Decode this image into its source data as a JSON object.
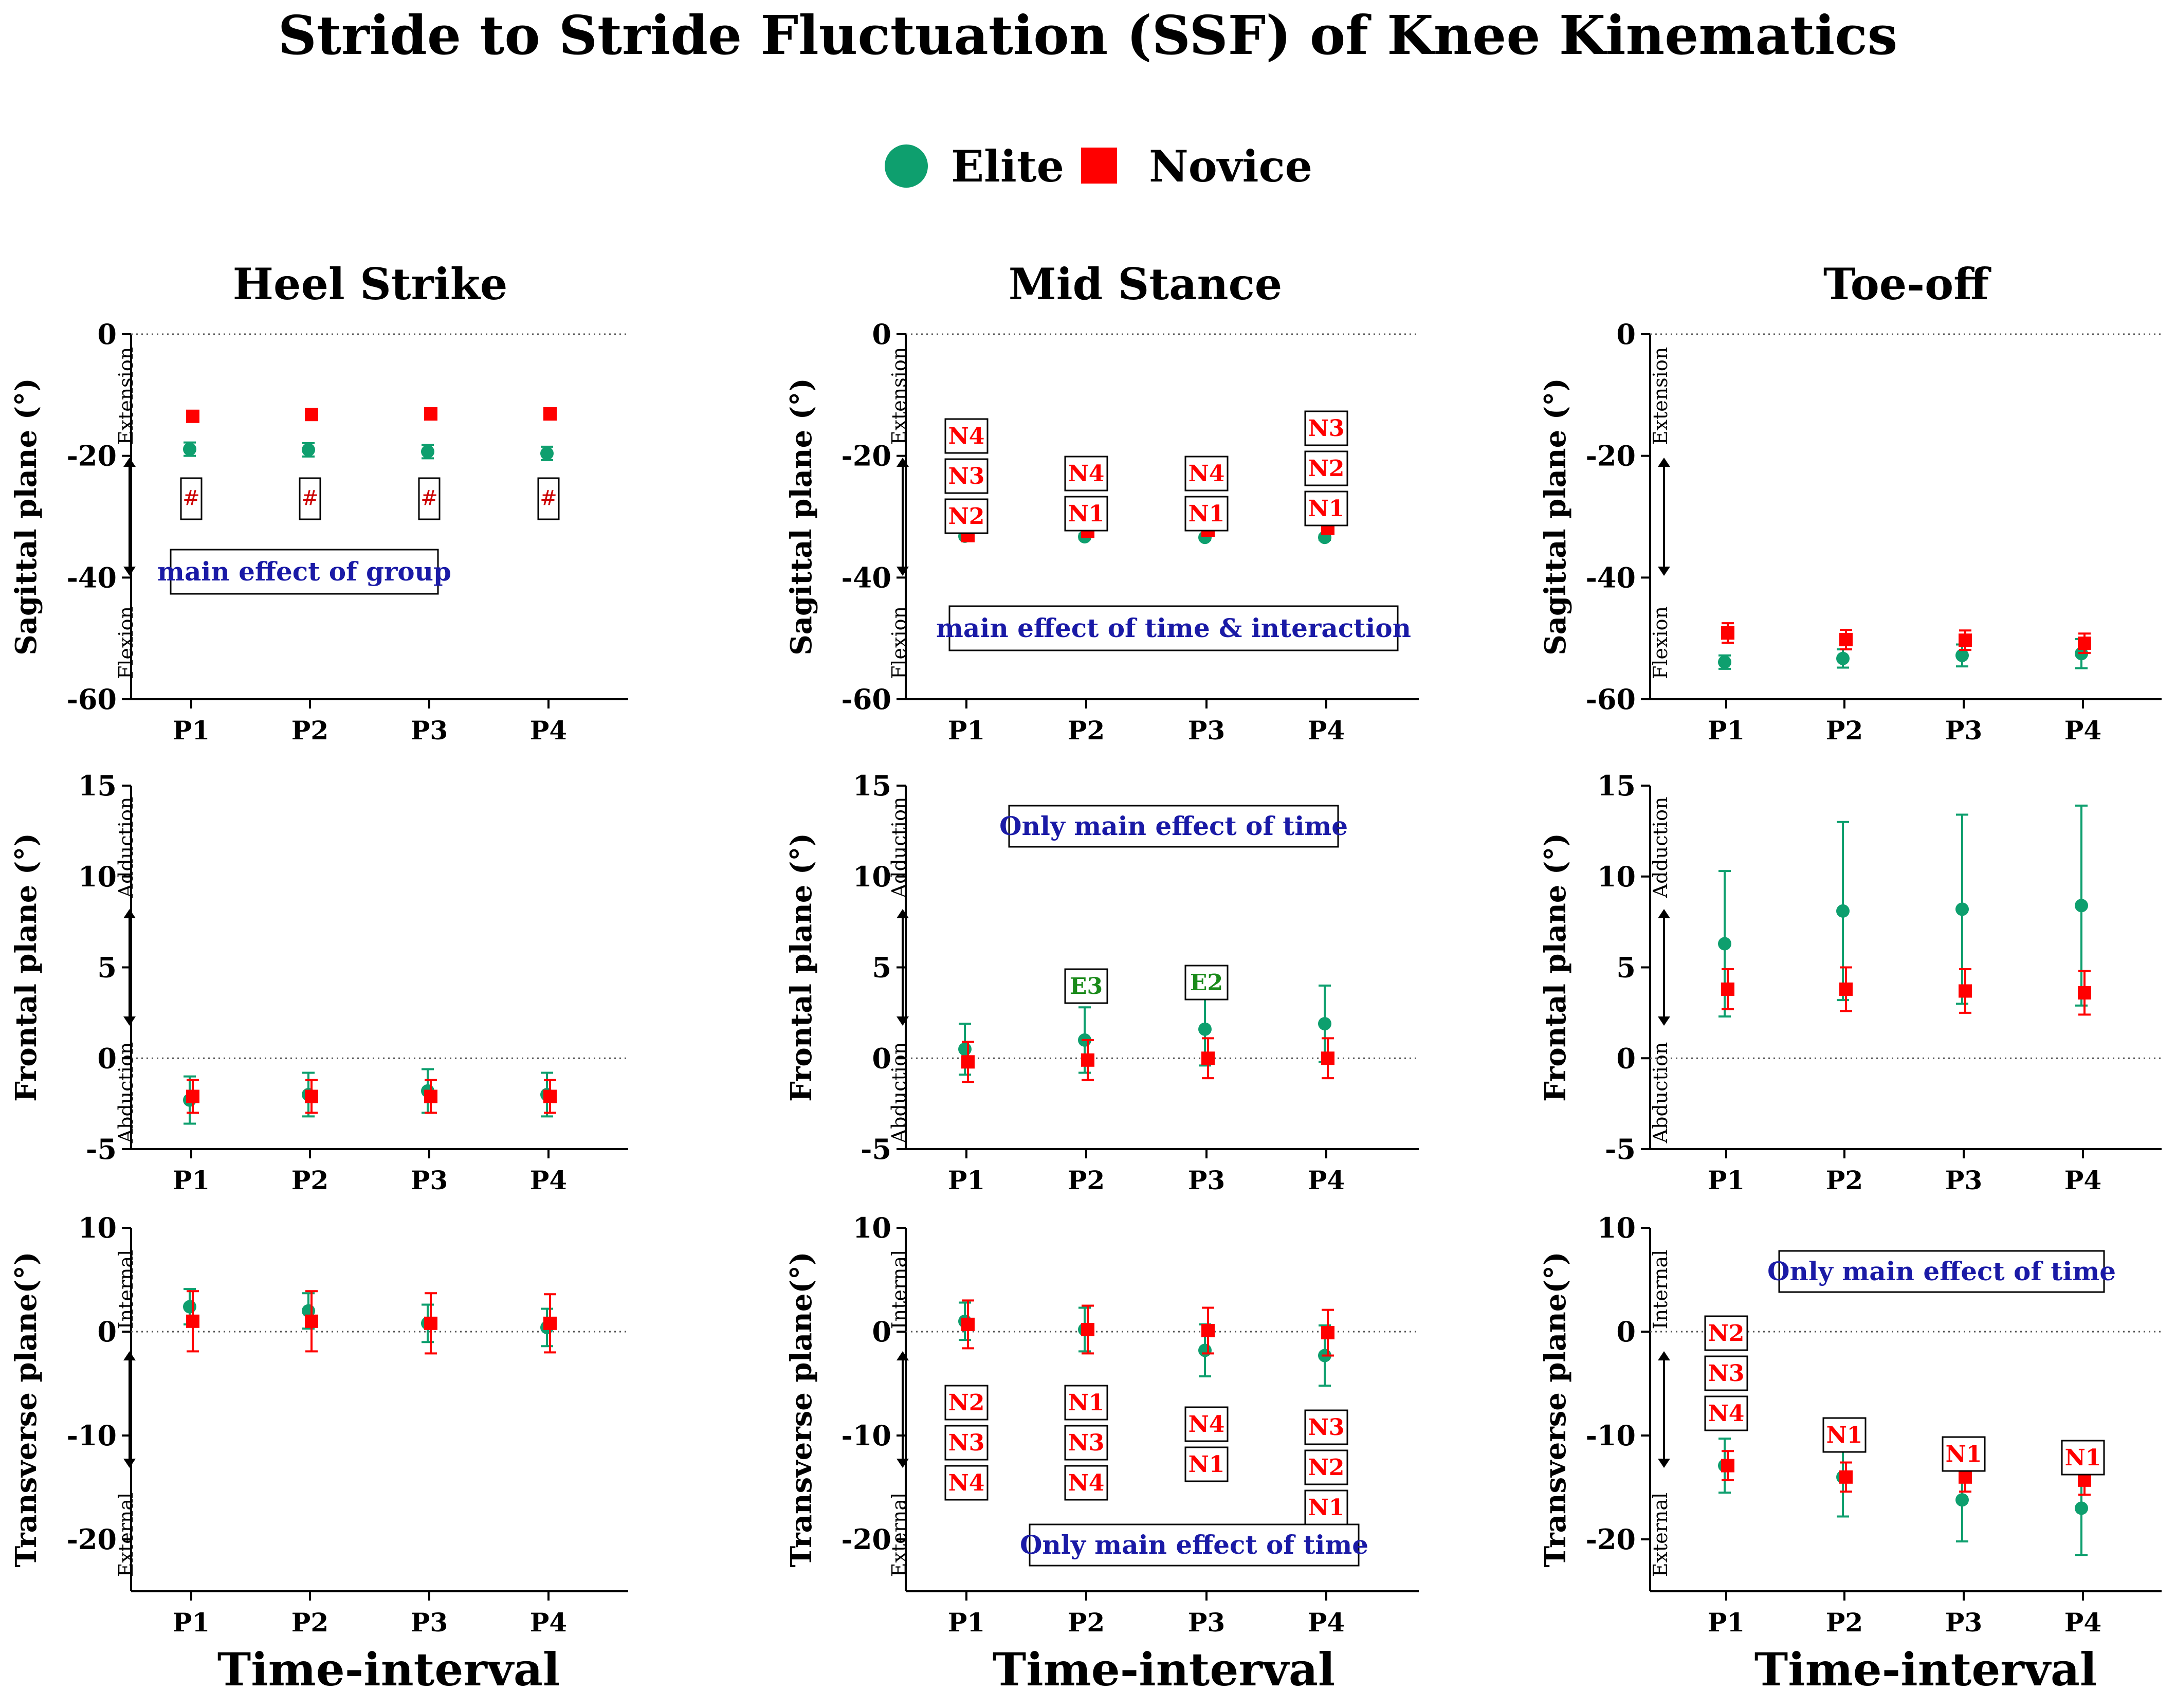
{
  "title": "Stride to Stride Fluctuation (SSF) of Knee Kinematics",
  "legend": [
    {
      "label": "Elite",
      "color": "#0e9f6e",
      "marker": "circle"
    },
    {
      "label": "Novice",
      "color": "#ff0000",
      "marker": "square"
    }
  ],
  "columns": [
    "Heel Strike",
    "Mid Stance",
    "Toe-off"
  ],
  "xlabel": "Time-interval",
  "chart_data": [
    {
      "type": "scatter",
      "id": "hs-sag",
      "column": "Heel Strike",
      "ylabel": "Sagittal plane (°)",
      "ylim": [
        -60,
        0
      ],
      "yticks": [
        0,
        -20,
        -40,
        -60
      ],
      "top_dir": "Extension",
      "bottom_dir": "Flexion",
      "categories": [
        "P1",
        "P2",
        "P3",
        "P4"
      ],
      "series": [
        {
          "name": "Elite",
          "values": [
            -18.9,
            -19.0,
            -19.3,
            -19.6
          ],
          "err": [
            1.1,
            1.1,
            1.1,
            1.1
          ]
        },
        {
          "name": "Novice",
          "values": [
            -13.5,
            -13.2,
            -13.1,
            -13.1
          ],
          "err": [
            0.4,
            0.4,
            0.4,
            0.4
          ]
        }
      ],
      "notes": [
        "main effect of group"
      ],
      "badges": [
        [
          "#"
        ],
        [
          "#"
        ],
        [
          "#"
        ],
        [
          "#"
        ]
      ]
    },
    {
      "type": "scatter",
      "id": "ms-sag",
      "column": "Mid Stance",
      "ylabel": "Sagittal plane (°)",
      "ylim": [
        -60,
        0
      ],
      "yticks": [
        0,
        -20,
        -40,
        -60
      ],
      "top_dir": "Extension",
      "bottom_dir": "Flexion",
      "categories": [
        "P1",
        "P2",
        "P3",
        "P4"
      ],
      "series": [
        {
          "name": "Elite",
          "values": [
            -33.2,
            -33.3,
            -33.4,
            -33.4
          ],
          "err": [
            0.4,
            0.4,
            0.4,
            0.4
          ]
        },
        {
          "name": "Novice",
          "values": [
            -33.1,
            -32.4,
            -32.2,
            -31.9
          ],
          "err": [
            0.4,
            0.4,
            0.4,
            0.4
          ]
        }
      ],
      "notes": [
        "main effect of time & interaction"
      ],
      "badges": [
        [
          "N4",
          "N3",
          "N2"
        ],
        [
          "N4",
          "N1"
        ],
        [
          "N4",
          "N1"
        ],
        [
          "N3",
          "N2",
          "N1"
        ]
      ]
    },
    {
      "type": "scatter",
      "id": "to-sag",
      "column": "Toe-off",
      "ylabel": "Sagittal plane (°)",
      "ylim": [
        -60,
        0
      ],
      "yticks": [
        0,
        -20,
        -40,
        -60
      ],
      "top_dir": "Extension",
      "bottom_dir": "Flexion",
      "categories": [
        "P1",
        "P2",
        "P3",
        "P4"
      ],
      "series": [
        {
          "name": "Elite",
          "values": [
            -53.9,
            -53.3,
            -52.8,
            -52.5
          ],
          "err": [
            1.1,
            1.5,
            1.8,
            2.4
          ]
        },
        {
          "name": "Novice",
          "values": [
            -49.1,
            -50.2,
            -50.3,
            -50.8
          ],
          "err": [
            1.6,
            1.6,
            1.6,
            1.6
          ]
        }
      ],
      "notes": [],
      "badges": [
        [],
        [],
        [],
        []
      ]
    },
    {
      "type": "scatter",
      "id": "hs-fro",
      "column": "Heel Strike",
      "ylabel": "Frontal plane (°)",
      "ylim": [
        -5,
        15
      ],
      "yticks": [
        15,
        10,
        5,
        0,
        -5
      ],
      "top_dir": "Adduction",
      "bottom_dir": "Abduction",
      "categories": [
        "P1",
        "P2",
        "P3",
        "P4"
      ],
      "series": [
        {
          "name": "Elite",
          "values": [
            -2.3,
            -2.0,
            -1.8,
            -2.0
          ],
          "err": [
            1.3,
            1.2,
            1.2,
            1.2
          ]
        },
        {
          "name": "Novice",
          "values": [
            -2.1,
            -2.1,
            -2.1,
            -2.1
          ],
          "err": [
            0.9,
            0.9,
            0.9,
            0.9
          ]
        }
      ],
      "notes": [],
      "badges": [
        [],
        [],
        [],
        []
      ]
    },
    {
      "type": "scatter",
      "id": "ms-fro",
      "column": "Mid Stance",
      "ylabel": "Frontal plane (°)",
      "ylim": [
        -5,
        15
      ],
      "yticks": [
        15,
        10,
        5,
        0,
        -5
      ],
      "top_dir": "Adduction",
      "bottom_dir": "Abduction",
      "categories": [
        "P1",
        "P2",
        "P3",
        "P4"
      ],
      "series": [
        {
          "name": "Elite",
          "values": [
            0.5,
            1.0,
            1.6,
            1.9
          ],
          "err": [
            1.4,
            1.8,
            2.0,
            2.1
          ]
        },
        {
          "name": "Novice",
          "values": [
            -0.2,
            -0.1,
            0.0,
            0.0
          ],
          "err": [
            1.1,
            1.1,
            1.1,
            1.1
          ]
        }
      ],
      "notes": [
        "Only main effect of time"
      ],
      "badges": [
        [],
        [
          "E3"
        ],
        [
          "E2"
        ],
        []
      ]
    },
    {
      "type": "scatter",
      "id": "to-fro",
      "column": "Toe-off",
      "ylabel": "Frontal plane (°)",
      "ylim": [
        -5,
        15
      ],
      "yticks": [
        15,
        10,
        5,
        0,
        -5
      ],
      "top_dir": "Adduction",
      "bottom_dir": "Abduction",
      "categories": [
        "P1",
        "P2",
        "P3",
        "P4"
      ],
      "series": [
        {
          "name": "Elite",
          "values": [
            6.3,
            8.1,
            8.2,
            8.4
          ],
          "err": [
            4.0,
            4.9,
            5.2,
            5.5
          ]
        },
        {
          "name": "Novice",
          "values": [
            3.8,
            3.8,
            3.7,
            3.6
          ],
          "err": [
            1.1,
            1.2,
            1.2,
            1.2
          ]
        }
      ],
      "notes": [],
      "badges": [
        [],
        [],
        [],
        []
      ]
    },
    {
      "type": "scatter",
      "id": "hs-tra",
      "column": "Heel Strike",
      "ylabel": "Transverse plane(°)",
      "ylim": [
        -25,
        10
      ],
      "yticks": [
        10,
        0,
        -10,
        -20
      ],
      "top_dir": "Internal",
      "bottom_dir": "External",
      "categories": [
        "P1",
        "P2",
        "P3",
        "P4"
      ],
      "series": [
        {
          "name": "Elite",
          "values": [
            2.4,
            2.0,
            0.8,
            0.4
          ],
          "err": [
            1.7,
            1.7,
            1.8,
            1.8
          ]
        },
        {
          "name": "Novice",
          "values": [
            1.0,
            1.0,
            0.8,
            0.8
          ],
          "err": [
            2.9,
            2.9,
            2.9,
            2.8
          ]
        }
      ],
      "notes": [],
      "badges": [
        [],
        [],
        [],
        []
      ]
    },
    {
      "type": "scatter",
      "id": "ms-tra",
      "column": "Mid Stance",
      "ylabel": "Transverse plane(°)",
      "ylim": [
        -25,
        10
      ],
      "yticks": [
        10,
        0,
        -10,
        -20
      ],
      "top_dir": "Internal",
      "bottom_dir": "External",
      "categories": [
        "P1",
        "P2",
        "P3",
        "P4"
      ],
      "series": [
        {
          "name": "Elite",
          "values": [
            1.0,
            0.2,
            -1.8,
            -2.3
          ],
          "err": [
            1.8,
            2.1,
            2.5,
            2.9
          ]
        },
        {
          "name": "Novice",
          "values": [
            0.7,
            0.2,
            0.1,
            -0.1
          ],
          "err": [
            2.3,
            2.3,
            2.2,
            2.2
          ]
        }
      ],
      "notes": [
        "Only main effect of time"
      ],
      "badges": [
        [
          "N2",
          "N3",
          "N4"
        ],
        [
          "N1",
          "N3",
          "N4"
        ],
        [
          "N4",
          "N1"
        ],
        [
          "N3",
          "N2",
          "N1"
        ]
      ]
    },
    {
      "type": "scatter",
      "id": "to-tra",
      "column": "Toe-off",
      "ylabel": "Transverse plane(°)",
      "ylim": [
        -25,
        10
      ],
      "yticks": [
        10,
        0,
        -10,
        -20
      ],
      "top_dir": "Internal",
      "bottom_dir": "External",
      "categories": [
        "P1",
        "P2",
        "P3",
        "P4"
      ],
      "series": [
        {
          "name": "Elite",
          "values": [
            -12.9,
            -14.0,
            -16.2,
            -17.0
          ],
          "err": [
            2.6,
            3.8,
            4.0,
            4.5
          ]
        },
        {
          "name": "Novice",
          "values": [
            -12.9,
            -14.0,
            -14.0,
            -14.3
          ],
          "err": [
            1.4,
            1.4,
            1.4,
            1.4
          ]
        }
      ],
      "notes": [
        "Only main effect of time"
      ],
      "badges": [
        [
          "N2",
          "N3",
          "N4"
        ],
        [
          "N1"
        ],
        [
          "N1"
        ],
        [
          "N1"
        ]
      ]
    }
  ]
}
